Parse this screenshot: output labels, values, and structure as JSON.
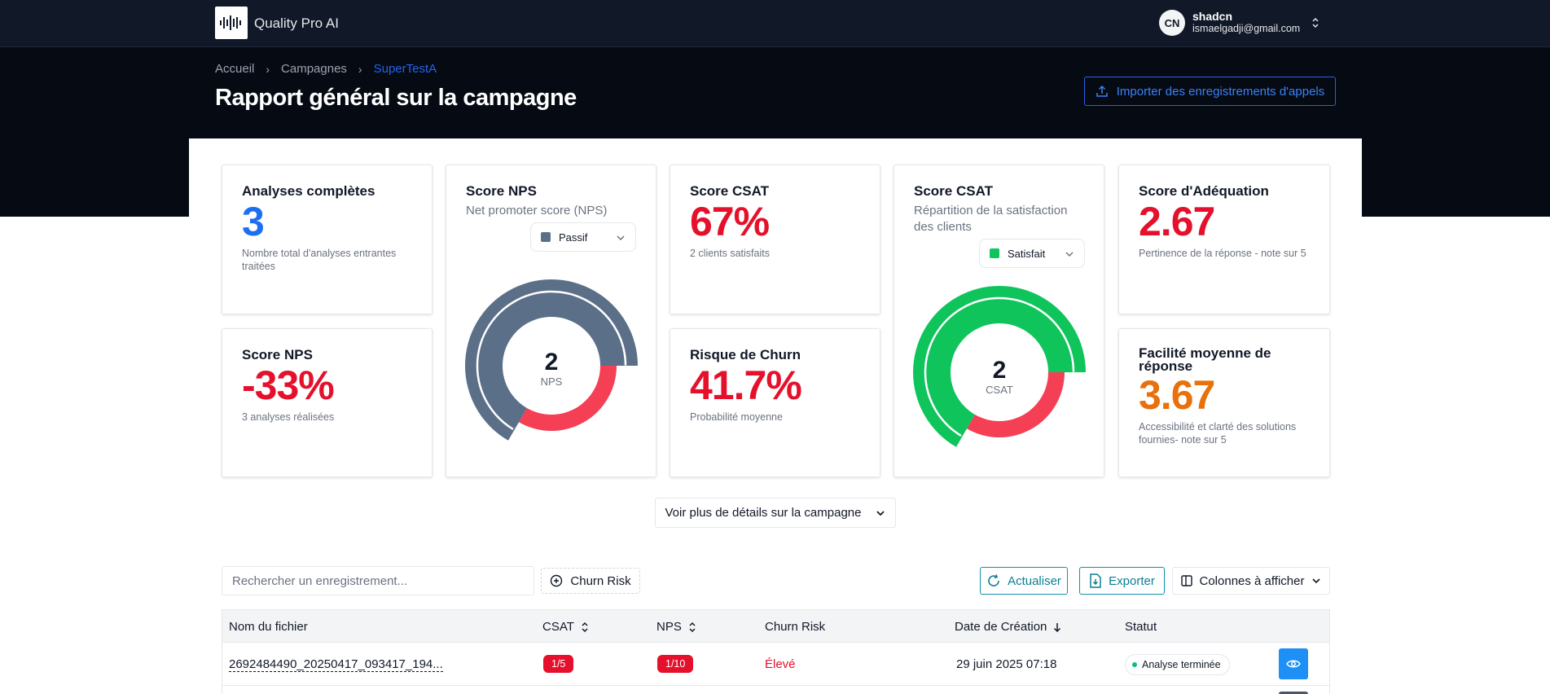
{
  "header": {
    "app_name": "Quality Pro AI",
    "user": {
      "initials": "CN",
      "name": "shadcn",
      "email": "ismaelgadji@gmail.com"
    }
  },
  "breadcrumb": [
    "Accueil",
    "Campagnes",
    "SuperTestA"
  ],
  "page_title": "Rapport général sur la campagne",
  "import_button": "Importer des enregistrements d'appels",
  "cards": {
    "analyses": {
      "title": "Analyses complètes",
      "value": "3",
      "desc": "Nombre total d'analyses entrantes traitées"
    },
    "nps_score": {
      "title": "Score NPS",
      "value": "-33%",
      "desc": "3 analyses réalisées"
    },
    "nps_chart": {
      "title": "Score NPS",
      "subtitle": "Net promoter score (NPS)",
      "dropdown": "Passif",
      "center_value": "2",
      "center_label": "NPS",
      "segments": [
        {
          "label": "Passif",
          "value": 2,
          "color": "#5b7088"
        },
        {
          "label": "Détracteur",
          "value": 1,
          "color": "#f43f54"
        }
      ]
    },
    "csat_score": {
      "title": "Score CSAT",
      "value": "67%",
      "desc": "2 clients satisfaits"
    },
    "churn": {
      "title": "Risque de Churn",
      "value": "41.7%",
      "desc": "Probabilité moyenne"
    },
    "csat_chart": {
      "title": "Score CSAT",
      "subtitle": "Répartition de la satisfaction des clients",
      "dropdown": "Satisfait",
      "center_value": "2",
      "center_label": "CSAT",
      "segments": [
        {
          "label": "Satisfait",
          "value": 2,
          "color": "#10c45c"
        },
        {
          "label": "Insatisfait",
          "value": 1,
          "color": "#f43f54"
        }
      ]
    },
    "adequation": {
      "title": "Score d'Adéquation",
      "value": "2.67",
      "desc": "Pertinence de la réponse - note sur 5"
    },
    "facilite": {
      "title": "Facilité moyenne de réponse",
      "value": "3.67",
      "desc": "Accessibilité et clarté des solutions fournies- note sur 5"
    }
  },
  "details_button": "Voir plus de détails sur la campagne",
  "toolbar": {
    "search_placeholder": "Rechercher un enregistrement...",
    "churn_filter": "Churn Risk",
    "refresh": "Actualiser",
    "export": "Exporter",
    "columns": "Colonnes à afficher"
  },
  "table": {
    "headers": [
      "Nom du fichier",
      "CSAT",
      "NPS",
      "Churn Risk",
      "Date de Création",
      "Statut"
    ],
    "rows": [
      {
        "file": "2692484490_20250417_093417_194...",
        "csat": "1/5",
        "nps": "1/10",
        "churn": "Élevé",
        "date": "29 juin 2025 07:18",
        "status": "Analyse terminée"
      }
    ]
  },
  "colors": {
    "accent": "#2563eb",
    "red": "#e5102b",
    "teal": "#0e94a8",
    "green": "#10c45c"
  }
}
